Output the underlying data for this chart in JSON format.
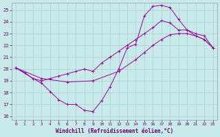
{
  "xlabel": "Windchill (Refroidissement éolien,°C)",
  "background_color": "#c8eaea",
  "grid_color": "#aad0d0",
  "line_color": "#990099",
  "xlim": [
    -0.5,
    23.5
  ],
  "ylim": [
    15.7,
    25.6
  ],
  "yticks": [
    16,
    17,
    18,
    19,
    20,
    21,
    22,
    23,
    24,
    25
  ],
  "xticks": [
    0,
    1,
    2,
    3,
    4,
    5,
    6,
    7,
    8,
    9,
    10,
    11,
    12,
    13,
    14,
    15,
    16,
    17,
    18,
    19,
    20,
    21,
    22,
    23
  ],
  "line1_x": [
    0,
    1,
    2,
    3,
    4,
    5,
    6,
    7,
    8,
    9,
    10,
    11,
    12,
    13,
    14,
    15,
    16,
    17,
    18,
    19,
    20,
    21,
    22,
    23
  ],
  "line1_y": [
    20.1,
    19.7,
    19.2,
    18.8,
    18.1,
    17.4,
    17.0,
    17.0,
    16.5,
    16.4,
    17.3,
    18.5,
    20.0,
    21.8,
    22.1,
    24.5,
    25.3,
    25.4,
    25.2,
    24.2,
    23.3,
    22.8,
    22.5,
    21.8
  ],
  "line2_x": [
    0,
    2,
    3,
    4,
    5,
    6,
    7,
    8,
    9,
    10,
    11,
    12,
    13,
    14,
    15,
    16,
    17,
    18,
    19,
    20,
    21,
    22,
    23
  ],
  "line2_y": [
    20.1,
    19.2,
    19.0,
    19.2,
    19.4,
    19.6,
    19.8,
    20.0,
    19.8,
    20.5,
    21.0,
    21.5,
    22.0,
    22.5,
    23.0,
    23.5,
    24.1,
    23.9,
    23.3,
    23.3,
    23.0,
    22.8,
    21.8
  ],
  "line3_x": [
    0,
    3,
    6,
    9,
    12,
    14,
    15,
    16,
    17,
    18,
    19,
    20,
    21,
    22,
    23
  ],
  "line3_y": [
    20.1,
    19.2,
    18.9,
    19.0,
    19.8,
    20.8,
    21.4,
    22.0,
    22.5,
    22.9,
    23.0,
    23.0,
    22.8,
    22.5,
    21.8
  ]
}
